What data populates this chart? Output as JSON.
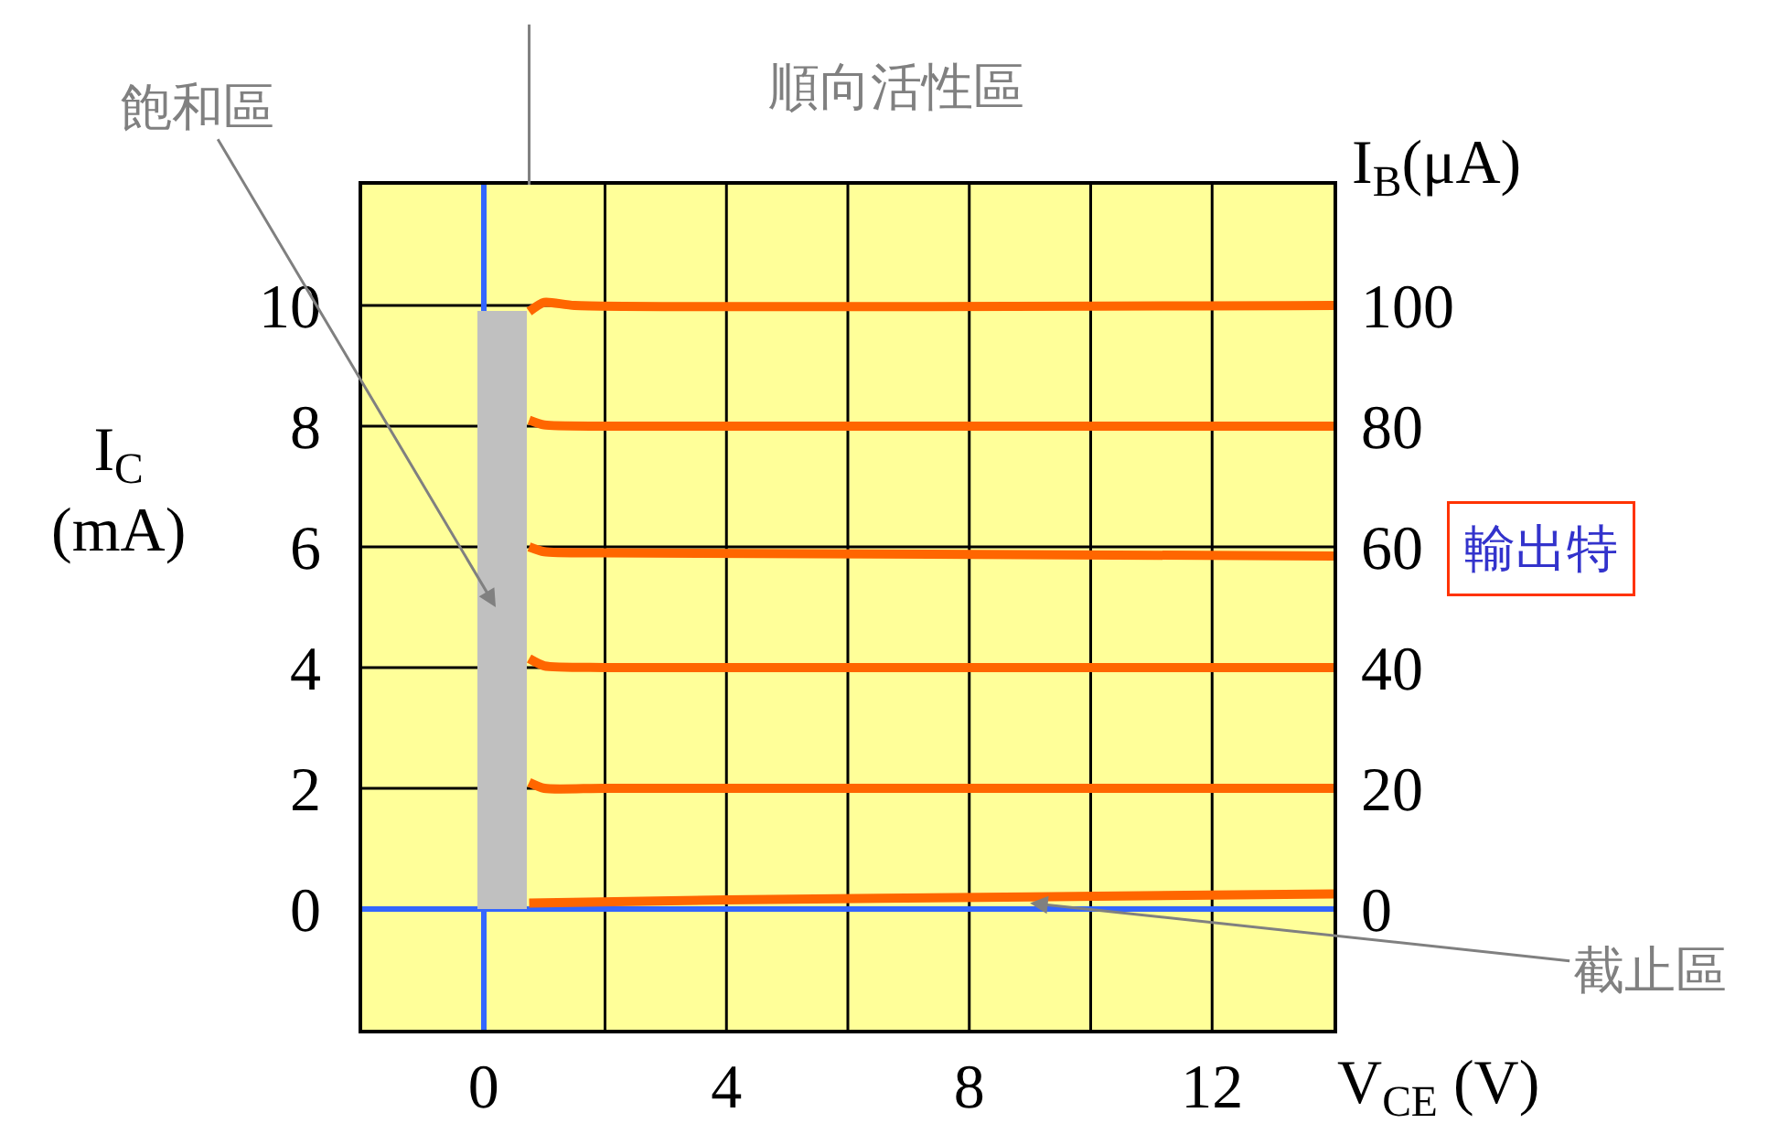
{
  "chart_data": {
    "type": "line",
    "xlabel": "V$_{CE}$ (V)",
    "ylabel": "I$_{C}$\n(mA)",
    "y2label": "I$_{B}$(μA)",
    "xlim": [
      -2,
      14
    ],
    "xticks": [
      {
        "value": -2,
        "label": null
      },
      0,
      {
        "value": 2,
        "label": null
      },
      4,
      {
        "value": 6,
        "label": null
      },
      8,
      {
        "value": 10,
        "label": null
      },
      12,
      {
        "value": 14,
        "label": null
      }
    ],
    "ylim": [
      -2,
      12
    ],
    "yticks": [
      {
        "value": -2,
        "label": null
      },
      0,
      2,
      4,
      6,
      8,
      10,
      {
        "value": 12,
        "label": null
      }
    ],
    "y2lim": [
      -20,
      120
    ],
    "y2ticks": [
      0,
      20,
      40,
      60,
      80,
      100
    ],
    "grid": true,
    "series": [
      {
        "type": "bar",
        "color": "#c0c0c0",
        "x": [
          0.3
        ],
        "values": [
          9.9
        ]
      },
      {
        "color": "#ff6600",
        "x": [
          0.75,
          1,
          1.5,
          14
        ],
        "values": [
          9.9,
          10.05,
          10,
          10
        ]
      },
      {
        "color": "#ff6600",
        "x": [
          0.75,
          1,
          2,
          14
        ],
        "values": [
          8.1,
          8.02,
          8,
          8
        ]
      },
      {
        "color": "#ff6600",
        "x": [
          0.75,
          1,
          2,
          14
        ],
        "values": [
          6,
          5.92,
          5.9,
          5.85
        ]
      },
      {
        "color": "#ff6600",
        "x": [
          0.75,
          1,
          2,
          14
        ],
        "values": [
          4.15,
          4.03,
          4,
          4
        ]
      },
      {
        "color": "#ff6600",
        "x": [
          0.75,
          1,
          2,
          14
        ],
        "values": [
          2.1,
          2,
          2,
          2
        ]
      },
      {
        "color": "#ff6600",
        "x": [
          0.75,
          4,
          9,
          14
        ],
        "values": [
          0.1,
          0.15,
          0.2,
          0.25
        ]
      }
    ],
    "annotations": [
      "飽和區",
      "順向活性區",
      {
        "text": "截止區",
        "x": 9,
        "y": 0.1
      },
      "輸出特"
    ]
  }
}
